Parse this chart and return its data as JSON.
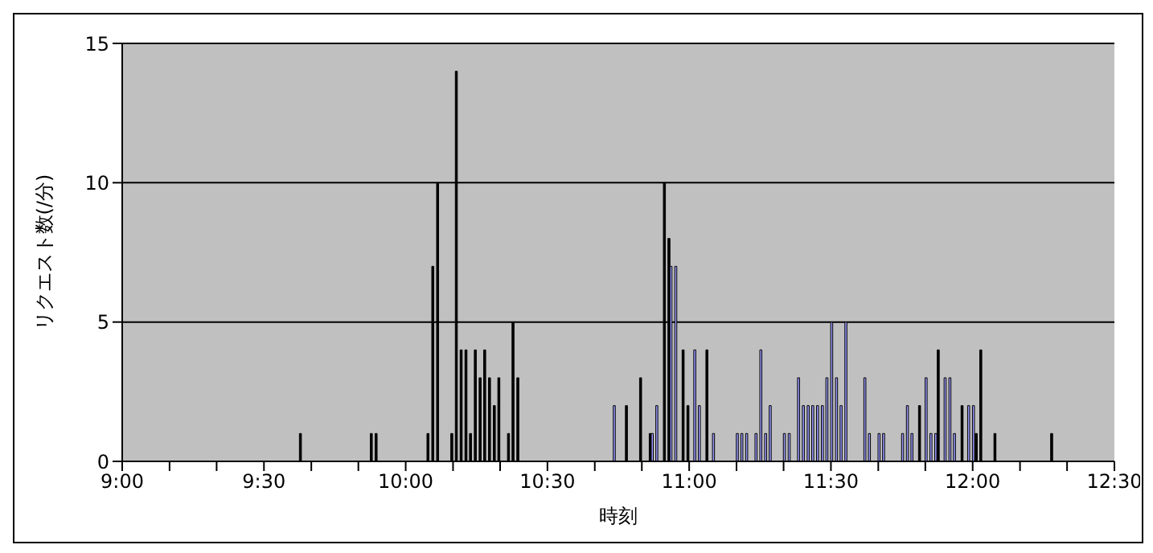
{
  "chart_data": {
    "type": "bar",
    "xlabel": "時刻",
    "ylabel": "リクエスト数(/分)",
    "xlim": [
      9,
      12.5
    ],
    "xticks": [
      {
        "value": 9,
        "label": "9:00"
      },
      {
        "value": 9.167,
        "label": null
      },
      {
        "value": 9.333,
        "label": null
      },
      {
        "value": 9.5,
        "label": "9:30"
      },
      {
        "value": 9.667,
        "label": null
      },
      {
        "value": 9.833,
        "label": null
      },
      {
        "value": 10,
        "label": "10:00"
      },
      {
        "value": 10.167,
        "label": null
      },
      {
        "value": 10.333,
        "label": null
      },
      {
        "value": 10.5,
        "label": "10:30"
      },
      {
        "value": 10.667,
        "label": null
      },
      {
        "value": 10.833,
        "label": null
      },
      {
        "value": 11,
        "label": "11:00"
      },
      {
        "value": 11.167,
        "label": null
      },
      {
        "value": 11.333,
        "label": null
      },
      {
        "value": 11.5,
        "label": "11:30"
      },
      {
        "value": 11.667,
        "label": null
      },
      {
        "value": 11.833,
        "label": null
      },
      {
        "value": 12,
        "label": "12:00"
      },
      {
        "value": 12.167,
        "label": null
      },
      {
        "value": 12.333,
        "label": null
      },
      {
        "value": 12.5,
        "label": "12:30"
      }
    ],
    "ylim": [
      0,
      15
    ],
    "yticks": [
      0,
      5,
      10,
      15
    ],
    "grid": "y",
    "legend": false,
    "series": [
      {
        "color": "#000000",
        "x": [
          9.633,
          9.883,
          9.9,
          10.083,
          10.1,
          10.117,
          10.167,
          10.183,
          10.2,
          10.217,
          10.233,
          10.25,
          10.267,
          10.283,
          10.3,
          10.317,
          10.333,
          10.367,
          10.383,
          10.4,
          10.783,
          10.833,
          10.867,
          10.917,
          10.933,
          10.983,
          11.0,
          11.067,
          11.817,
          11.883,
          11.967,
          12.017,
          12.033,
          12.083,
          12.283
        ],
        "values": [
          1,
          1,
          1,
          1,
          7,
          10,
          1,
          14,
          4,
          4,
          1,
          4,
          3,
          4,
          3,
          2,
          3,
          1,
          5,
          3,
          2,
          3,
          1,
          10,
          8,
          4,
          2,
          4,
          2,
          4,
          2,
          1,
          4,
          1,
          1
        ]
      },
      {
        "color": "#9999ff",
        "x": [
          10.733,
          10.867,
          10.883,
          10.933,
          10.95,
          11.017,
          11.033,
          11.083,
          11.167,
          11.183,
          11.2,
          11.233,
          11.25,
          11.267,
          11.283,
          11.333,
          11.35,
          11.383,
          11.4,
          11.417,
          11.433,
          11.45,
          11.467,
          11.483,
          11.5,
          11.517,
          11.533,
          11.55,
          11.617,
          11.633,
          11.667,
          11.683,
          11.75,
          11.767,
          11.783,
          11.833,
          11.85,
          11.867,
          11.9,
          11.917,
          11.933,
          11.983,
          12.0
        ],
        "values": [
          2,
          1,
          2,
          7,
          7,
          4,
          2,
          1,
          1,
          1,
          1,
          1,
          4,
          1,
          2,
          1,
          1,
          3,
          2,
          2,
          2,
          2,
          2,
          3,
          5,
          3,
          2,
          5,
          3,
          1,
          1,
          1,
          1,
          2,
          1,
          3,
          1,
          1,
          3,
          3,
          1,
          2,
          2
        ]
      }
    ]
  }
}
